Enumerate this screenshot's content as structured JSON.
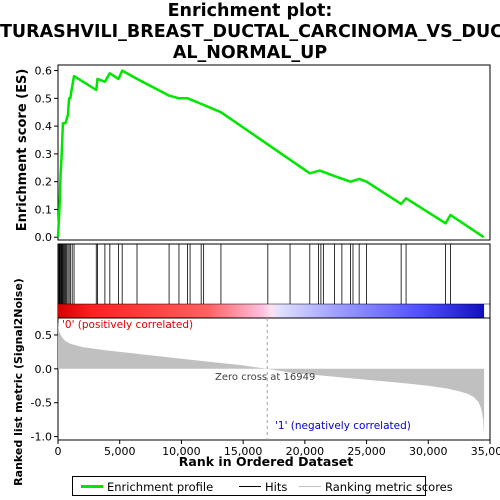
{
  "title_lines": [
    "Enrichment plot:",
    "TURASHVILI_BREAST_DUCTAL_CARCINOMA_VS_DUCT",
    "AL_NORMAL_UP"
  ],
  "colors": {
    "es_line": "#00e600",
    "hits": "#000000",
    "metric_fill": "#c0c0c0",
    "positive_label": "#e00000",
    "negative_label": "#0000d0",
    "zero_cross_line": "#a0a0a0"
  },
  "legend": [
    {
      "label": "Enrichment profile",
      "color": "#00e600",
      "kind": "thick"
    },
    {
      "label": "Hits",
      "color": "#000000",
      "kind": "thin"
    },
    {
      "label": "Ranking metric scores",
      "color": "#c0c0c0",
      "kind": "thin"
    }
  ],
  "annotations": {
    "positive": "'0' (positively correlated)",
    "negative": "'1' (negatively correlated)",
    "zero_cross": "Zero cross at 16949"
  },
  "chart_data": [
    {
      "type": "line",
      "panel": "enrichment",
      "ylabel": "Enrichment score (ES)",
      "xlim": [
        0,
        35000
      ],
      "ylim": [
        -0.01,
        0.62
      ],
      "yticks": [
        0.0,
        0.1,
        0.2,
        0.3,
        0.4,
        0.5,
        0.6
      ],
      "yticklabels": [
        "0.0",
        "0.1",
        "0.2",
        "0.3",
        "0.4",
        "0.5",
        "0.6"
      ],
      "series": [
        {
          "x": [
            0,
            80,
            150,
            200,
            300,
            400,
            600,
            800,
            900,
            1000,
            1100,
            1300,
            3100,
            3200,
            3800,
            4200,
            4900,
            5200,
            6400,
            9000,
            9800,
            10500,
            11600,
            13200,
            20400,
            21200,
            22400,
            23700,
            24400,
            25000,
            27800,
            28200,
            31400,
            31800,
            34500
          ],
          "y": [
            0.0,
            0.07,
            0.14,
            0.22,
            0.3,
            0.41,
            0.41,
            0.44,
            0.5,
            0.5,
            0.53,
            0.58,
            0.53,
            0.57,
            0.56,
            0.59,
            0.57,
            0.6,
            0.57,
            0.51,
            0.5,
            0.5,
            0.48,
            0.45,
            0.23,
            0.24,
            0.22,
            0.2,
            0.21,
            0.2,
            0.12,
            0.14,
            0.05,
            0.08,
            0.0
          ]
        }
      ]
    },
    {
      "type": "hits",
      "panel": "hits",
      "hit_ranks": [
        30,
        90,
        150,
        200,
        260,
        320,
        380,
        450,
        520,
        600,
        700,
        800,
        900,
        1000,
        1150,
        1300,
        3100,
        3200,
        3800,
        4200,
        4900,
        5200,
        6400,
        9000,
        9800,
        10500,
        10700,
        11600,
        11800,
        13200,
        17000,
        18800,
        20400,
        21100,
        21300,
        21500,
        22400,
        23000,
        23700,
        23900,
        24400,
        25000,
        27800,
        28200,
        31400,
        31800
      ]
    },
    {
      "type": "area",
      "panel": "ranked_metric",
      "ylabel": "Ranked list metric (Signal2Noise)",
      "xlabel": "Rank in Ordered Dataset",
      "xlim": [
        0,
        35000
      ],
      "ylim": [
        -1.05,
        0.75
      ],
      "xticks": [
        0,
        5000,
        10000,
        15000,
        20000,
        25000,
        30000,
        35000
      ],
      "xticklabels": [
        "0",
        "5,000",
        "10,000",
        "15,000",
        "20,000",
        "25,000",
        "30,000",
        "35,000"
      ],
      "yticks": [
        0.5,
        0.0,
        -0.5,
        -1.0
      ],
      "yticklabels": [
        "0.5",
        "0.0",
        "-0.5",
        "-1.0"
      ],
      "zero_cross": 16949,
      "x": [
        0,
        30,
        100,
        300,
        600,
        1000,
        2000,
        4000,
        7000,
        10000,
        13000,
        15000,
        16949,
        19000,
        22000,
        25000,
        28000,
        30000,
        31500,
        32500,
        33200,
        33700,
        34100,
        34300,
        34450,
        34520
      ],
      "y": [
        0.72,
        0.62,
        0.55,
        0.47,
        0.41,
        0.37,
        0.32,
        0.27,
        0.21,
        0.15,
        0.09,
        0.05,
        0.0,
        -0.06,
        -0.11,
        -0.16,
        -0.21,
        -0.25,
        -0.29,
        -0.33,
        -0.37,
        -0.42,
        -0.5,
        -0.6,
        -0.75,
        -0.98
      ]
    }
  ]
}
